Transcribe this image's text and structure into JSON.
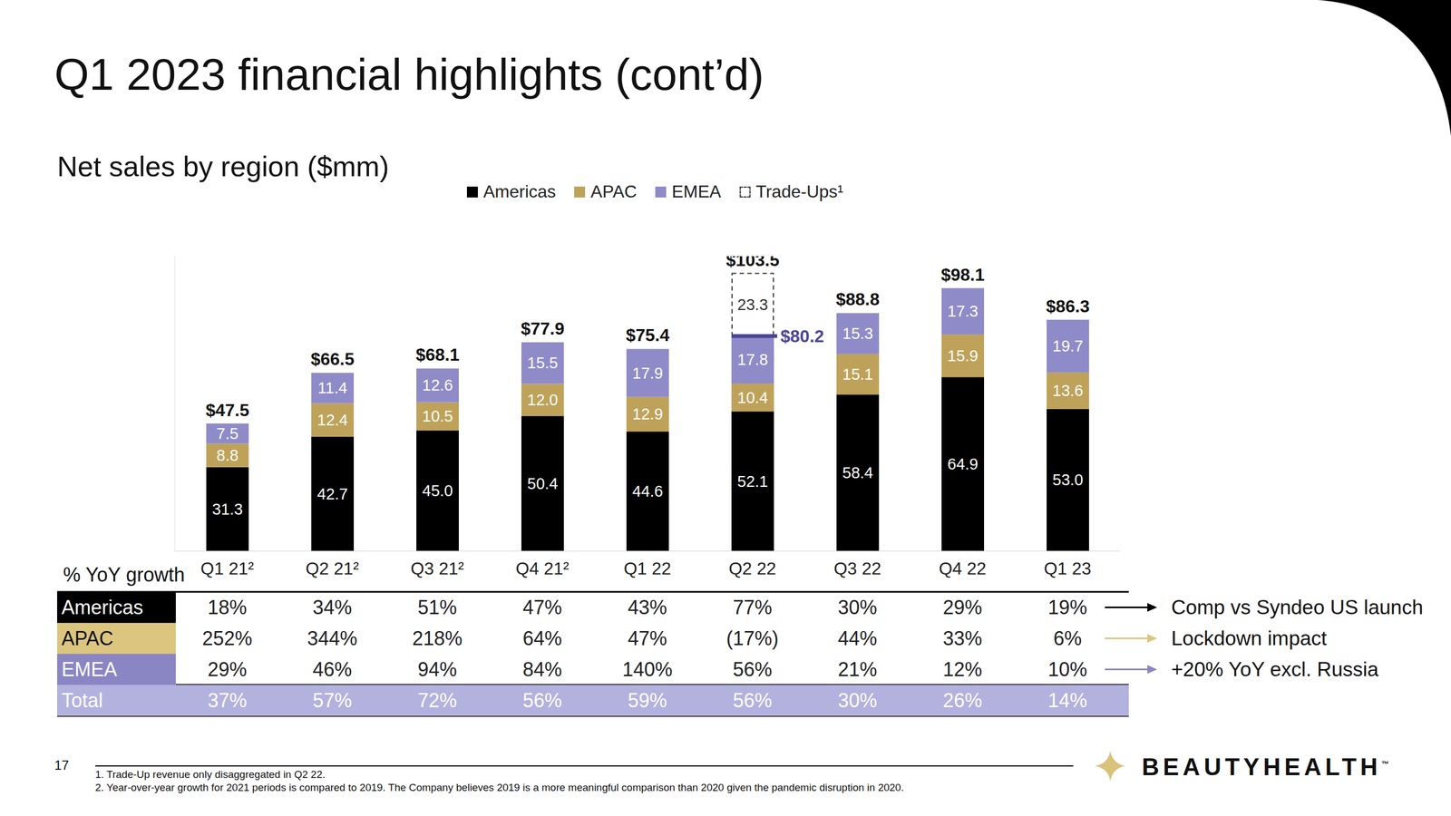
{
  "chart_data": {
    "type": "bar",
    "title": "Q1 2023 financial highlights (cont’d)",
    "subtitle": "Net sales by region ($mm)",
    "categories": [
      "Q1 21²",
      "Q2 21²",
      "Q3 21²",
      "Q4 21²",
      "Q1 22",
      "Q2 22",
      "Q3 22",
      "Q4 22",
      "Q1 23"
    ],
    "series": [
      {
        "name": "Americas",
        "color": "#000000",
        "values": [
          31.3,
          42.7,
          45.0,
          50.4,
          44.6,
          52.1,
          58.4,
          64.9,
          53.0
        ],
        "value_labels": [
          "31.3",
          "42.7",
          "45.0",
          "50.4",
          "44.6",
          "52.1",
          "58.4",
          "64.9",
          "53.0"
        ]
      },
      {
        "name": "APAC",
        "color": "#bfa25a",
        "values": [
          8.8,
          12.4,
          10.5,
          12.0,
          12.9,
          10.4,
          15.1,
          15.9,
          13.6
        ],
        "value_labels": [
          "8.8",
          "12.4",
          "10.5",
          "12.0",
          "12.9",
          "10.4",
          "15.1",
          "15.9",
          "13.6"
        ]
      },
      {
        "name": "EMEA",
        "color": "#8f8bc9",
        "values": [
          7.5,
          11.4,
          12.6,
          15.5,
          17.9,
          17.8,
          15.3,
          17.3,
          19.7
        ],
        "value_labels": [
          "7.5",
          "11.4",
          "12.6",
          "15.5",
          "17.9",
          "17.8",
          "15.3",
          "17.3",
          "19.7"
        ]
      },
      {
        "name": "Trade-Ups¹",
        "color": "#333333",
        "line_style": "dashed",
        "values": [
          null,
          null,
          null,
          null,
          null,
          23.3,
          null,
          null,
          null
        ],
        "value_labels": [
          null,
          null,
          null,
          null,
          null,
          "23.3",
          null,
          null,
          null
        ]
      }
    ],
    "totals": {
      "values": [
        47.5,
        66.5,
        68.1,
        77.9,
        75.4,
        103.5,
        88.8,
        98.1,
        86.3
      ],
      "value_labels": [
        "$47.5",
        "$66.5",
        "$68.1",
        "$77.9",
        "$75.4",
        "$103.5",
        "$88.8",
        "$98.1",
        "$86.3"
      ]
    },
    "annotations": [
      {
        "category": "Q2 22",
        "value": 80.2,
        "text": "$80.2",
        "color": "#4b4596"
      }
    ],
    "ylim": [
      0,
      110
    ],
    "yticks": [],
    "stacked": true,
    "data_labels": true,
    "tick_labels": "x",
    "grid": false,
    "legend": "top"
  },
  "growth_table": {
    "title": "% YoY growth",
    "rows": [
      {
        "label": "Americas",
        "color": "#000000",
        "values": [
          "18%",
          "34%",
          "51%",
          "47%",
          "43%",
          "77%",
          "30%",
          "29%",
          "19%"
        ],
        "comment": "Comp vs Syndeo US launch"
      },
      {
        "label": "APAC",
        "color": "#dcc57e",
        "values": [
          "252%",
          "344%",
          "218%",
          "64%",
          "47%",
          "(17%)",
          "44%",
          "33%",
          "6%"
        ],
        "comment": "Lockdown impact"
      },
      {
        "label": "EMEA",
        "color": "#8a86c4",
        "values": [
          "29%",
          "46%",
          "94%",
          "84%",
          "140%",
          "56%",
          "21%",
          "12%",
          "10%"
        ],
        "comment": "+20% YoY excl. Russia"
      },
      {
        "label": "Total",
        "color": "#b3b1de",
        "values": [
          "37%",
          "57%",
          "72%",
          "56%",
          "59%",
          "56%",
          "30%",
          "26%",
          "14%"
        ]
      }
    ]
  },
  "footnotes": [
    "1. Trade-Up revenue only disaggregated in Q2 22.",
    "2. Year-over-year growth for 2021 periods is compared to 2019. The Company believes 2019 is a more meaningful comparison than 2020 given the pandemic disruption in 2020."
  ],
  "page_number": "17",
  "logo": "BEAUTYHEALTH",
  "logo_mark": "™"
}
